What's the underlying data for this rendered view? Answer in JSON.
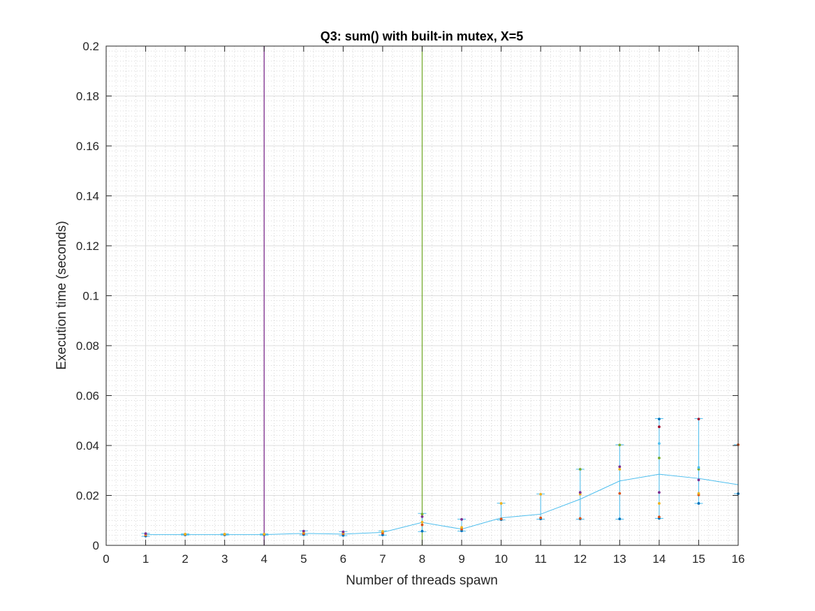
{
  "chart_data": {
    "type": "line",
    "title": "Q3: sum() with built-in mutex, X=5",
    "xlabel": "Number of threads spawn",
    "ylabel": "Execution time (seconds)",
    "xlim": [
      0,
      16
    ],
    "ylim": [
      0,
      0.2
    ],
    "xticks": [
      0,
      1,
      2,
      3,
      4,
      5,
      6,
      7,
      8,
      9,
      10,
      11,
      12,
      13,
      14,
      15,
      16
    ],
    "yticks": [
      0,
      0.02,
      0.04,
      0.06,
      0.08,
      0.1,
      0.12,
      0.14,
      0.16,
      0.18,
      0.2
    ],
    "ytick_labels": [
      "0",
      "0.02",
      "0.04",
      "0.06",
      "0.08",
      "0.1",
      "0.12",
      "0.14",
      "0.16",
      "0.18",
      "0.2"
    ],
    "grid": true,
    "minor_grid": true,
    "vertical_lines": [
      {
        "x": 4,
        "color": "#7E2F8E"
      },
      {
        "x": 8,
        "color": "#77AC30"
      }
    ],
    "series": [
      {
        "color": "#4DBEEE",
        "x": [
          1,
          2,
          3,
          4,
          5,
          6,
          7,
          8,
          9,
          10,
          11,
          12,
          13,
          14,
          15,
          16
        ],
        "values": [
          0.0043,
          0.0043,
          0.0043,
          0.0043,
          0.0048,
          0.0045,
          0.0052,
          0.0092,
          0.0065,
          0.011,
          0.0125,
          0.0185,
          0.0258,
          0.0285,
          0.0268,
          0.0243
        ],
        "err_low": [
          0.0036,
          0.0041,
          0.0041,
          0.0041,
          0.0042,
          0.0039,
          0.0041,
          0.0055,
          0.0057,
          0.0102,
          0.0105,
          0.0105,
          0.0105,
          0.0108,
          0.0168,
          0.0207
        ],
        "err_high": [
          0.0048,
          0.0046,
          0.0046,
          0.0046,
          0.0058,
          0.0055,
          0.0058,
          0.0128,
          0.0105,
          0.0169,
          0.0206,
          0.0305,
          0.0403,
          0.0508,
          0.0508,
          0.0403
        ]
      }
    ],
    "samples": [
      {
        "x": 1,
        "y": [
          0.0037,
          0.0041,
          0.0044,
          0.0047
        ]
      },
      {
        "x": 2,
        "y": [
          0.0042,
          0.0044,
          0.0045
        ]
      },
      {
        "x": 3,
        "y": [
          0.0042,
          0.0044,
          0.0045
        ]
      },
      {
        "x": 4,
        "y": [
          0.0042,
          0.0044,
          0.0045
        ]
      },
      {
        "x": 5,
        "y": [
          0.0043,
          0.0047,
          0.0052,
          0.0057
        ]
      },
      {
        "x": 6,
        "y": [
          0.004,
          0.0046,
          0.005,
          0.0054
        ]
      },
      {
        "x": 7,
        "y": [
          0.0042,
          0.0049,
          0.0056
        ]
      },
      {
        "x": 8,
        "y": [
          0.0057,
          0.0082,
          0.0093,
          0.0115,
          0.0125
        ]
      },
      {
        "x": 9,
        "y": [
          0.0058,
          0.0065,
          0.0072,
          0.0104
        ]
      },
      {
        "x": 10,
        "y": [
          0.0103,
          0.0106,
          0.0168
        ]
      },
      {
        "x": 11,
        "y": [
          0.0106,
          0.011,
          0.0205
        ]
      },
      {
        "x": 12,
        "y": [
          0.0106,
          0.0108,
          0.0205,
          0.0212,
          0.0305
        ]
      },
      {
        "x": 13,
        "y": [
          0.0106,
          0.0208,
          0.0305,
          0.0315,
          0.0402
        ]
      },
      {
        "x": 14,
        "y": [
          0.0108,
          0.0114,
          0.0168,
          0.0212,
          0.035,
          0.0408,
          0.0475,
          0.0506
        ]
      },
      {
        "x": 15,
        "y": [
          0.0168,
          0.0202,
          0.0208,
          0.0262,
          0.0305,
          0.0312,
          0.0506
        ]
      },
      {
        "x": 16,
        "y": [
          0.0207,
          0.0403
        ]
      }
    ],
    "sample_colors": [
      "#0072BD",
      "#D95319",
      "#EDB120",
      "#7E2F8E",
      "#77AC30",
      "#4DBEEE",
      "#A2142F"
    ]
  }
}
